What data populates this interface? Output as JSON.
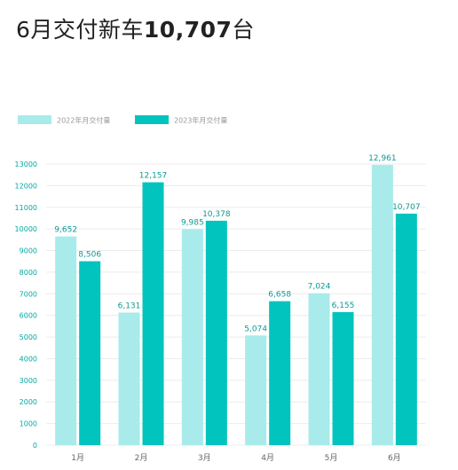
{
  "header": {
    "title_prefix": "6月交付新车",
    "title_number": "10,707",
    "title_suffix": "台"
  },
  "colors": {
    "series_2022": "#a8ebea",
    "series_2023": "#00c4bd",
    "axis_text": "#00a9a3",
    "label_text": "#0e9a95",
    "grid": "#ececec"
  },
  "chart_data": {
    "type": "bar",
    "categories": [
      "1月",
      "2月",
      "3月",
      "4月",
      "5月",
      "6月"
    ],
    "series": [
      {
        "name": "2022年月交付量",
        "values": [
          9652,
          6131,
          9985,
          5074,
          7024,
          12961
        ],
        "labels": [
          "9,652",
          "6,131",
          "9,985",
          "5,074",
          "7,024",
          "12,961"
        ]
      },
      {
        "name": "2023年月交付量",
        "values": [
          8506,
          12157,
          10378,
          6658,
          6155,
          10707
        ],
        "labels": [
          "8,506",
          "12,157",
          "10,378",
          "6,658",
          "6,155",
          "10,707"
        ]
      }
    ],
    "yticks": [
      0,
      1000,
      2000,
      3000,
      4000,
      5000,
      6000,
      7000,
      8000,
      9000,
      10000,
      11000,
      12000,
      13000
    ],
    "ylim": [
      0,
      13000
    ],
    "grid": true,
    "legend": "top-left"
  }
}
